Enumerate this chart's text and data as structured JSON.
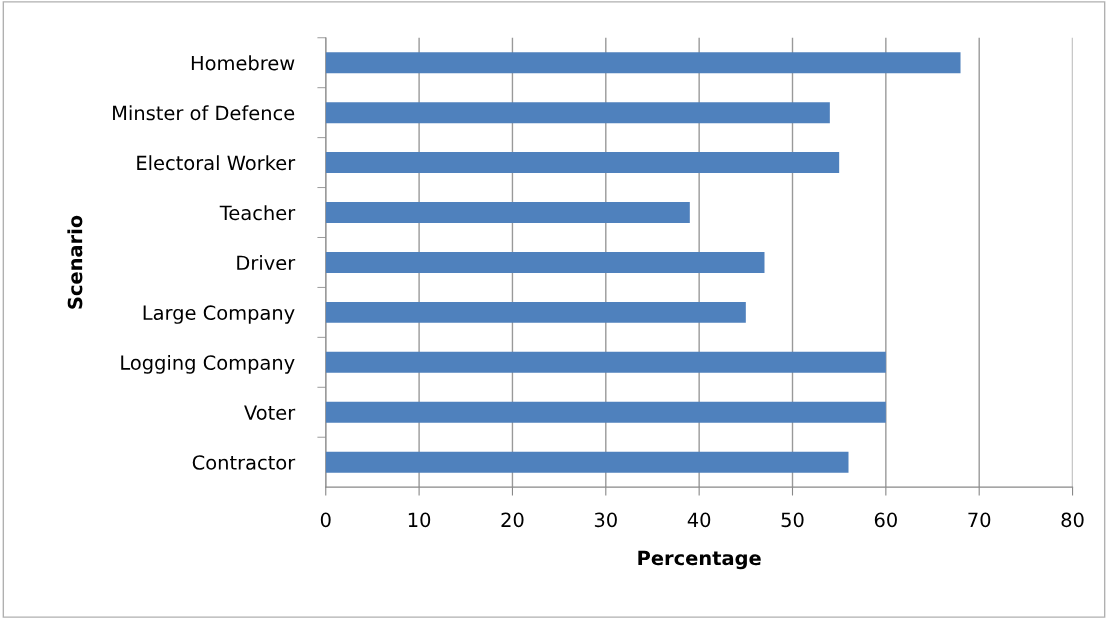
{
  "chart_data": {
    "type": "bar",
    "orientation": "horizontal",
    "xlabel": "Percentage",
    "ylabel": "Scenario",
    "categories": [
      "Homebrew",
      "Minster of Defence",
      "Electoral Worker",
      "Teacher",
      "Driver",
      "Large Company",
      "Logging Company",
      "Voter",
      "Contractor"
    ],
    "values": [
      68,
      54,
      55,
      39,
      47,
      45,
      60,
      60,
      56
    ],
    "color": "#4f81bd",
    "xlim": [
      0,
      80
    ],
    "xticks": [
      0,
      10,
      20,
      30,
      40,
      50,
      60,
      70,
      80
    ],
    "grid": "x"
  }
}
